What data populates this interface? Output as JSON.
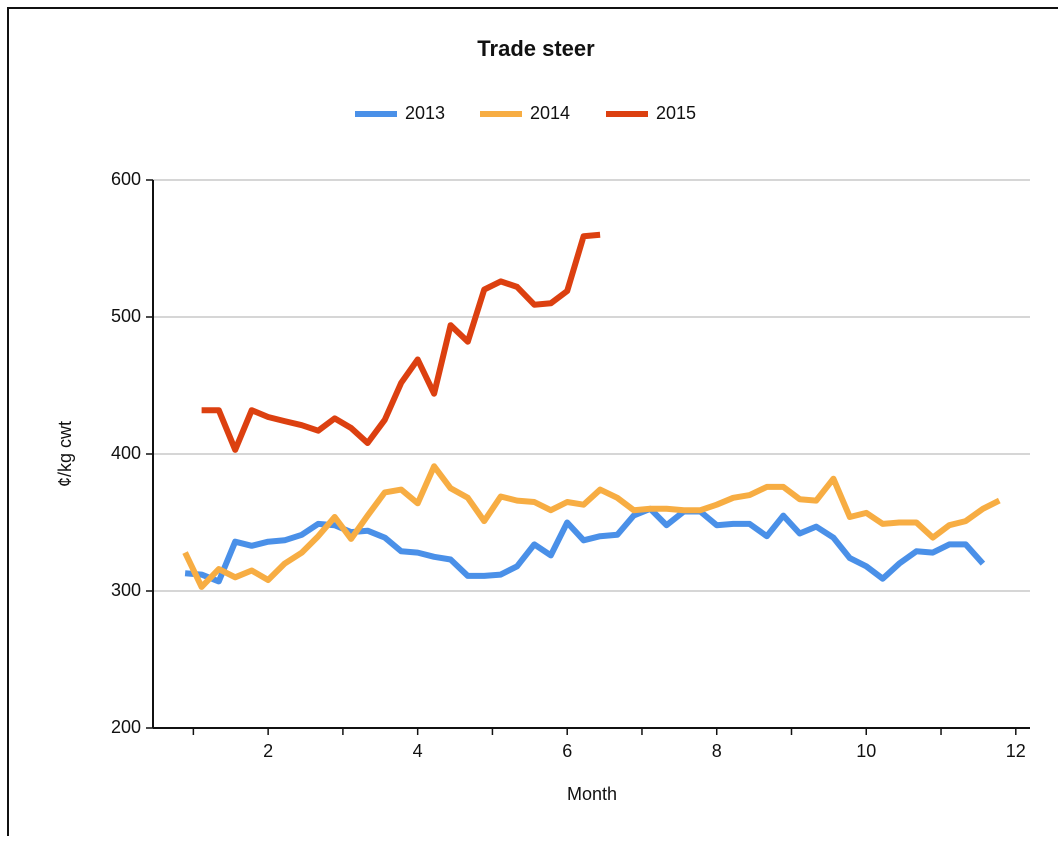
{
  "chart_data": {
    "type": "line",
    "title": "Trade steer",
    "xlabel": "Month",
    "ylabel": "¢/kg cwt",
    "x": [
      0.89,
      1.11,
      1.34,
      1.56,
      1.78,
      2.0,
      2.22,
      2.45,
      2.67,
      2.89,
      3.11,
      3.33,
      3.56,
      3.78,
      4.0,
      4.22,
      4.44,
      4.67,
      4.89,
      5.11,
      5.33,
      5.56,
      5.78,
      6.0,
      6.22,
      6.44,
      6.67,
      6.89,
      7.11,
      7.33,
      7.56,
      7.78,
      8.0,
      8.22,
      8.44,
      8.67,
      8.89,
      9.11,
      9.33,
      9.56,
      9.78,
      10.0,
      10.22,
      10.44,
      10.67,
      10.89,
      11.11,
      11.33,
      11.56,
      11.78
    ],
    "series": [
      {
        "name": "2013",
        "color": "#4a90e8",
        "values": [
          313,
          312,
          307,
          336,
          333,
          336,
          337,
          341,
          349,
          348,
          343,
          344,
          339,
          329,
          328,
          325,
          323,
          311,
          311,
          312,
          318,
          334,
          326,
          350,
          337,
          340,
          341,
          355,
          360,
          348,
          358,
          358,
          348,
          349,
          349,
          340,
          355,
          342,
          347,
          339,
          324,
          318,
          309,
          320,
          329,
          328,
          334,
          334,
          320,
          null
        ]
      },
      {
        "name": "2014",
        "color": "#f7ad43",
        "values": [
          328,
          303,
          316,
          310,
          315,
          308,
          320,
          328,
          340,
          354,
          338,
          355,
          372,
          374,
          364,
          391,
          375,
          368,
          351,
          369,
          366,
          365,
          359,
          365,
          363,
          374,
          368,
          359,
          360,
          360,
          359,
          359,
          363,
          368,
          370,
          376,
          376,
          367,
          366,
          382,
          354,
          357,
          349,
          350,
          350,
          339,
          348,
          351,
          360,
          366
        ]
      },
      {
        "name": "2015",
        "color": "#dc4010",
        "values": [
          null,
          432,
          432,
          403,
          432,
          427,
          424,
          421,
          417,
          426,
          419,
          408,
          425,
          452,
          469,
          444,
          494,
          482,
          520,
          526,
          522,
          509,
          510,
          519,
          559,
          560,
          null,
          null,
          null,
          null,
          null,
          null,
          null,
          null,
          null,
          null,
          null,
          null,
          null,
          null,
          null,
          null,
          null,
          null,
          null,
          null,
          null,
          null,
          null,
          null
        ]
      }
    ],
    "xlim": [
      0.46,
      12.19
    ],
    "xticks": [
      2,
      4,
      6,
      8,
      10,
      12
    ],
    "xminorticks": [
      1,
      3,
      5,
      7,
      9,
      11
    ],
    "ylim": [
      200,
      600
    ],
    "yticks": [
      200,
      300,
      400,
      500,
      600
    ],
    "grid": true,
    "legend": "top"
  }
}
